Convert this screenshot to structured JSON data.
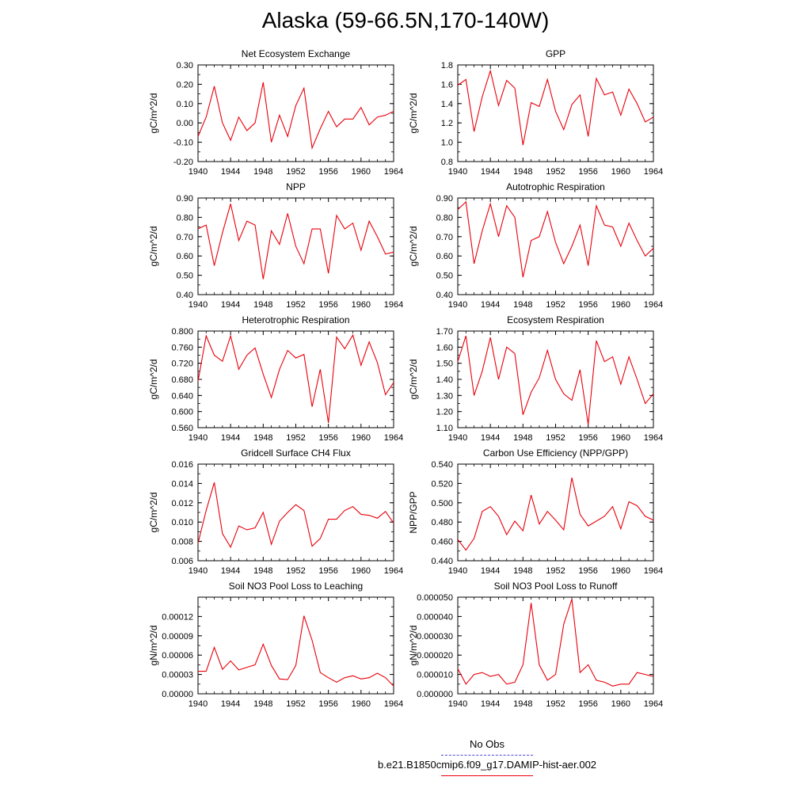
{
  "title": "Alaska (59-66.5N,170-140W)",
  "line_color": "#e8000b",
  "legend": {
    "entries": [
      {
        "label": "No Obs",
        "color": "#4b4bd8",
        "style": "dashed"
      },
      {
        "label": "b.e21.B1850cmip6.f09_g17.DAMIP-hist-aer.002",
        "color": "#e8000b",
        "style": "solid"
      }
    ]
  },
  "chart_data": [
    {
      "type": "line",
      "title": "Net Ecosystem Exchange",
      "ylabel": "gC/m^2/d",
      "x_start": 1940,
      "x_end": 1964,
      "xticks": [
        "1940",
        "1944",
        "1948",
        "1952",
        "1956",
        "1960",
        "1964"
      ],
      "ylim": [
        -0.2,
        0.3
      ],
      "yticks": [
        "-0.20",
        "-0.10",
        "0.00",
        "0.10",
        "0.20",
        "0.30"
      ],
      "series": [
        {
          "values": [
            -0.07,
            0.03,
            0.19,
            0.0,
            -0.09,
            0.03,
            -0.04,
            0.0,
            0.21,
            -0.1,
            0.04,
            -0.07,
            0.09,
            0.18,
            -0.13,
            -0.03,
            0.06,
            -0.02,
            0.02,
            0.02,
            0.08,
            -0.01,
            0.03,
            0.04,
            0.06
          ]
        }
      ]
    },
    {
      "type": "line",
      "title": "GPP",
      "ylabel": "gC/m^2/d",
      "x_start": 1940,
      "x_end": 1964,
      "xticks": [
        "1940",
        "1944",
        "1948",
        "1952",
        "1956",
        "1960",
        "1964"
      ],
      "ylim": [
        0.8,
        1.8
      ],
      "yticks": [
        "0.8",
        "1.0",
        "1.2",
        "1.4",
        "1.6",
        "1.8"
      ],
      "series": [
        {
          "values": [
            1.59,
            1.65,
            1.11,
            1.47,
            1.74,
            1.38,
            1.64,
            1.56,
            0.97,
            1.41,
            1.37,
            1.65,
            1.32,
            1.13,
            1.39,
            1.49,
            1.06,
            1.66,
            1.49,
            1.52,
            1.28,
            1.55,
            1.4,
            1.21,
            1.26
          ]
        }
      ]
    },
    {
      "type": "line",
      "title": "NPP",
      "ylabel": "gC/m^2/d",
      "x_start": 1940,
      "x_end": 1964,
      "xticks": [
        "1940",
        "1944",
        "1948",
        "1952",
        "1956",
        "1960",
        "1964"
      ],
      "ylim": [
        0.4,
        0.9
      ],
      "yticks": [
        "0.40",
        "0.50",
        "0.60",
        "0.70",
        "0.80",
        "0.90"
      ],
      "series": [
        {
          "values": [
            0.74,
            0.76,
            0.55,
            0.72,
            0.87,
            0.68,
            0.78,
            0.76,
            0.48,
            0.73,
            0.66,
            0.82,
            0.65,
            0.56,
            0.74,
            0.74,
            0.51,
            0.81,
            0.74,
            0.77,
            0.63,
            0.78,
            0.7,
            0.61,
            0.62
          ]
        }
      ]
    },
    {
      "type": "line",
      "title": "Autotrophic Respiration",
      "ylabel": "gC/m^2/d",
      "x_start": 1940,
      "x_end": 1964,
      "xticks": [
        "1940",
        "1944",
        "1948",
        "1952",
        "1956",
        "1960",
        "1964"
      ],
      "ylim": [
        0.4,
        0.9
      ],
      "yticks": [
        "0.40",
        "0.50",
        "0.60",
        "0.70",
        "0.80",
        "0.90"
      ],
      "series": [
        {
          "values": [
            0.84,
            0.88,
            0.56,
            0.73,
            0.87,
            0.7,
            0.86,
            0.8,
            0.49,
            0.68,
            0.7,
            0.83,
            0.67,
            0.56,
            0.65,
            0.76,
            0.55,
            0.86,
            0.76,
            0.75,
            0.65,
            0.77,
            0.68,
            0.6,
            0.64
          ]
        }
      ]
    },
    {
      "type": "line",
      "title": "Heterotrophic Respiration",
      "ylabel": "gC/m^2/d",
      "x_start": 1940,
      "x_end": 1964,
      "xticks": [
        "1940",
        "1944",
        "1948",
        "1952",
        "1956",
        "1960",
        "1964"
      ],
      "ylim": [
        0.56,
        0.8
      ],
      "yticks": [
        "0.560",
        "0.600",
        "0.640",
        "0.680",
        "0.720",
        "0.760",
        "0.800"
      ],
      "series": [
        {
          "values": [
            0.675,
            0.788,
            0.74,
            0.725,
            0.788,
            0.705,
            0.74,
            0.758,
            0.693,
            0.635,
            0.705,
            0.752,
            0.733,
            0.742,
            0.612,
            0.705,
            0.572,
            0.785,
            0.756,
            0.79,
            0.715,
            0.773,
            0.722,
            0.642,
            0.672
          ]
        }
      ]
    },
    {
      "type": "line",
      "title": "Ecosystem Respiration",
      "ylabel": "gC/m^2/d",
      "x_start": 1940,
      "x_end": 1964,
      "xticks": [
        "1940",
        "1944",
        "1948",
        "1952",
        "1956",
        "1960",
        "1964"
      ],
      "ylim": [
        1.1,
        1.7
      ],
      "yticks": [
        "1.10",
        "1.20",
        "1.30",
        "1.40",
        "1.50",
        "1.60",
        "1.70"
      ],
      "series": [
        {
          "values": [
            1.51,
            1.67,
            1.3,
            1.45,
            1.66,
            1.4,
            1.6,
            1.56,
            1.18,
            1.32,
            1.41,
            1.58,
            1.4,
            1.31,
            1.27,
            1.46,
            1.12,
            1.64,
            1.51,
            1.54,
            1.37,
            1.54,
            1.4,
            1.25,
            1.31
          ]
        }
      ]
    },
    {
      "type": "line",
      "title": "Gridcell Surface CH4 Flux",
      "ylabel": "gC/m^2/d",
      "x_start": 1940,
      "x_end": 1964,
      "xticks": [
        "1940",
        "1944",
        "1948",
        "1952",
        "1956",
        "1960",
        "1964"
      ],
      "ylim": [
        0.006,
        0.016
      ],
      "yticks": [
        "0.006",
        "0.008",
        "0.010",
        "0.012",
        "0.014",
        "0.016"
      ],
      "series": [
        {
          "values": [
            0.0078,
            0.0112,
            0.0141,
            0.0088,
            0.0074,
            0.0096,
            0.0092,
            0.0094,
            0.011,
            0.0077,
            0.0101,
            0.011,
            0.0118,
            0.0112,
            0.0075,
            0.0083,
            0.0103,
            0.0103,
            0.0112,
            0.0116,
            0.0108,
            0.0107,
            0.0104,
            0.0111,
            0.0099
          ]
        }
      ]
    },
    {
      "type": "line",
      "title": "Carbon Use Efficiency (NPP/GPP)",
      "ylabel": "NPP/GPP",
      "x_start": 1940,
      "x_end": 1964,
      "xticks": [
        "1940",
        "1944",
        "1948",
        "1952",
        "1956",
        "1960",
        "1964"
      ],
      "ylim": [
        0.44,
        0.54
      ],
      "yticks": [
        "0.440",
        "0.460",
        "0.480",
        "0.500",
        "0.520",
        "0.540"
      ],
      "series": [
        {
          "values": [
            0.462,
            0.451,
            0.463,
            0.491,
            0.496,
            0.486,
            0.467,
            0.481,
            0.471,
            0.508,
            0.478,
            0.491,
            0.482,
            0.472,
            0.526,
            0.488,
            0.476,
            0.481,
            0.486,
            0.496,
            0.473,
            0.501,
            0.497,
            0.486,
            0.482
          ]
        }
      ]
    },
    {
      "type": "line",
      "title": "Soil NO3 Pool Loss to Leaching",
      "ylabel": "gN/m^2/d",
      "x_start": 1940,
      "x_end": 1964,
      "xticks": [
        "1940",
        "1944",
        "1948",
        "1952",
        "1956",
        "1960",
        "1964"
      ],
      "ylim": [
        0,
        0.00015
      ],
      "yticks": [
        "0.00000",
        "0.00003",
        "0.00006",
        "0.00009",
        "0.00012"
      ],
      "series": [
        {
          "values": [
            3.5e-05,
            3.5e-05,
            7.2e-05,
            3.8e-05,
            5.1e-05,
            3.7e-05,
            4.1e-05,
            4.5e-05,
            7.7e-05,
            4.4e-05,
            2.3e-05,
            2.2e-05,
            4.4e-05,
            0.000121,
            8.3e-05,
            3.3e-05,
            2.5e-05,
            1.8e-05,
            2.5e-05,
            2.8e-05,
            2.3e-05,
            2.5e-05,
            3.2e-05,
            2.5e-05,
            1.2e-05
          ]
        }
      ]
    },
    {
      "type": "line",
      "title": "Soil NO3 Pool Loss to Runoff",
      "ylabel": "gN/m^2/d",
      "x_start": 1940,
      "x_end": 1964,
      "xticks": [
        "1940",
        "1944",
        "1948",
        "1952",
        "1956",
        "1960",
        "1964"
      ],
      "ylim": [
        0,
        5e-05
      ],
      "yticks": [
        "0.000000",
        "0.000010",
        "0.000020",
        "0.000030",
        "0.000040",
        "0.000050"
      ],
      "series": [
        {
          "values": [
            1.3e-05,
            5e-06,
            1e-05,
            1.1e-05,
            9e-06,
            1e-05,
            5e-06,
            6e-06,
            1.5e-05,
            4.7e-05,
            1.5e-05,
            7e-06,
            1e-05,
            3.6e-05,
            4.9e-05,
            1.1e-05,
            1.5e-05,
            7e-06,
            6e-06,
            4e-06,
            5e-06,
            5e-06,
            1.1e-05,
            1e-05,
            9e-06
          ]
        }
      ]
    }
  ]
}
